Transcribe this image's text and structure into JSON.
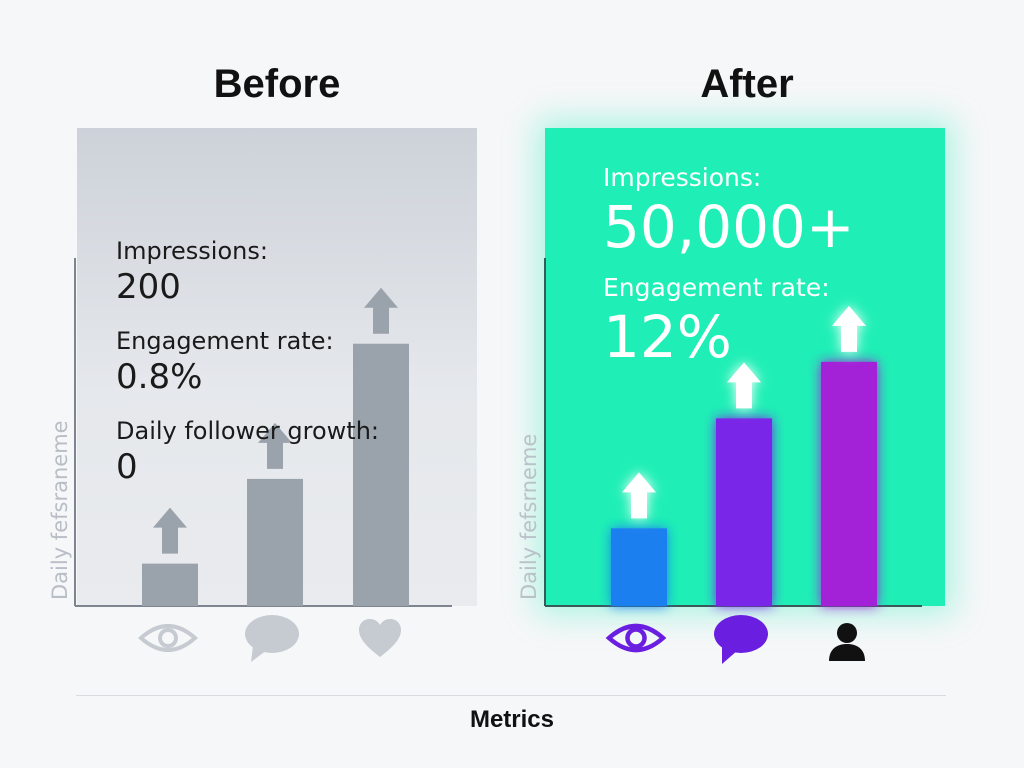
{
  "chart_data": [
    {
      "type": "bar",
      "title": "Before",
      "ylabel": "Daily fefsraneme",
      "categories": [
        "eye-icon",
        "chat-bubble-icon",
        "heart-icon"
      ],
      "values": [
        42,
        126,
        260
      ],
      "bar_color": "#9aa2ac",
      "ylim": [
        0,
        345
      ],
      "annotations": [
        {
          "label": "Impressions:",
          "value": "200"
        },
        {
          "label": "Engagement rate:",
          "value": "0.8%"
        },
        {
          "label": "Daily follower growth:",
          "value": "0"
        }
      ],
      "panel_color": "#d3d7dd",
      "icon_color": "#c6cbd1"
    },
    {
      "type": "bar",
      "title": "After",
      "ylabel": "Daily fefsrneme",
      "categories": [
        "eye-icon",
        "chat-bubble-icon",
        "person-icon"
      ],
      "values": [
        77,
        186,
        242
      ],
      "bar_colors": [
        "#1e7ff0",
        "#7a28e8",
        "#a321d8"
      ],
      "ylim": [
        0,
        345
      ],
      "annotations": [
        {
          "label": "Impressions:",
          "value": "50,000+"
        },
        {
          "label": "Engagement rate:",
          "value": "12%"
        }
      ],
      "panel_color": "#1fefb6",
      "icon_colors": [
        "#6a1ee0",
        "#6a1ee0",
        "#111111"
      ]
    }
  ],
  "xlabel": "Metrics"
}
